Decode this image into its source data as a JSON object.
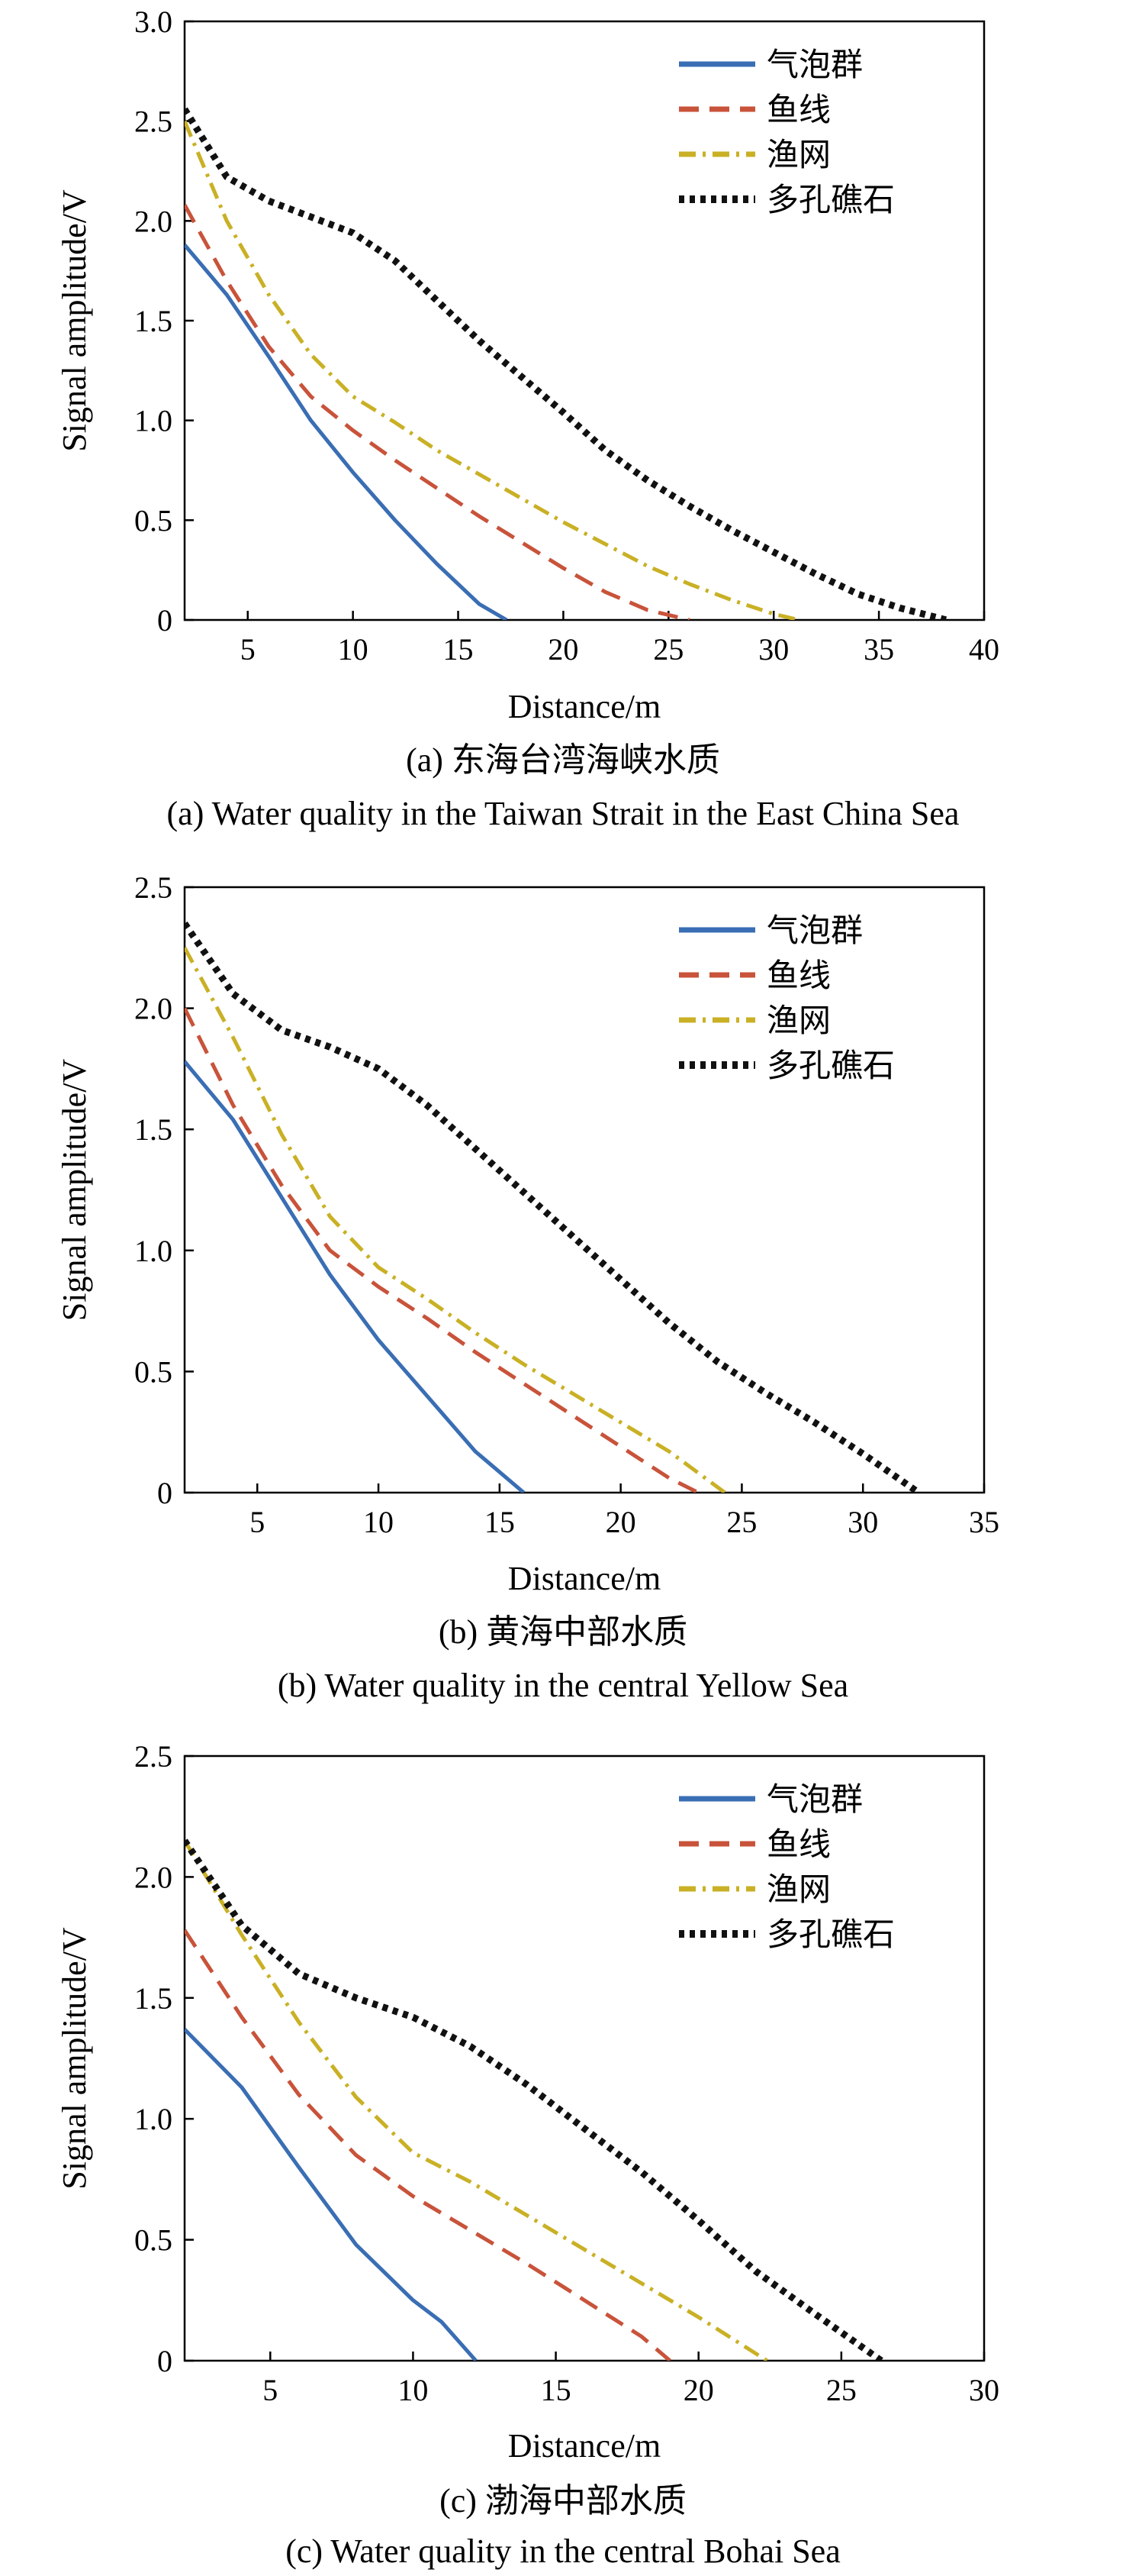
{
  "chart_data": [
    {
      "type": "line",
      "ylabel": "Signal amplitude/V",
      "xlabel": "Distance/m",
      "caption_zh": "(a) 东海台湾海峡水质",
      "caption_en": "(a) Water quality in the Taiwan Strait in the East China Sea",
      "xlim": [
        2,
        40
      ],
      "ylim": [
        0,
        3.0
      ],
      "xticks": [
        5,
        10,
        15,
        20,
        25,
        30,
        35,
        40
      ],
      "xtick_labels": [
        "5",
        "10",
        "15",
        "20",
        "25",
        "30",
        "35",
        "40"
      ],
      "yticks": [
        0,
        0.5,
        1.0,
        1.5,
        2.0,
        2.5,
        3.0
      ],
      "ytick_labels": [
        "0",
        "0.5",
        "1.0",
        "1.5",
        "2.0",
        "2.5",
        "3.0"
      ],
      "legend_position": "top-right",
      "series": [
        {
          "name": "气泡群",
          "x": [
            2,
            4,
            6,
            8,
            10,
            12,
            14,
            16,
            17.3
          ],
          "y": [
            1.88,
            1.63,
            1.32,
            1.0,
            0.74,
            0.5,
            0.28,
            0.08,
            0
          ]
        },
        {
          "name": "鱼线",
          "x": [
            2,
            4,
            6,
            8,
            10,
            12,
            14,
            16,
            18,
            20,
            22,
            24,
            26
          ],
          "y": [
            2.08,
            1.7,
            1.37,
            1.12,
            0.95,
            0.8,
            0.66,
            0.52,
            0.39,
            0.26,
            0.14,
            0.05,
            0
          ]
        },
        {
          "name": "渔网",
          "x": [
            2,
            4,
            6,
            8,
            10,
            12,
            14,
            16,
            18,
            20,
            22,
            24,
            26,
            28,
            30,
            31.2
          ],
          "y": [
            2.5,
            2.0,
            1.63,
            1.33,
            1.12,
            0.99,
            0.85,
            0.73,
            0.61,
            0.49,
            0.38,
            0.27,
            0.18,
            0.1,
            0.03,
            0
          ]
        },
        {
          "name": "多孔礁石",
          "x": [
            2,
            4,
            6,
            8,
            10,
            12,
            14,
            16,
            18,
            20,
            22,
            24,
            26,
            28,
            30,
            32,
            34,
            36,
            38.2
          ],
          "y": [
            2.56,
            2.22,
            2.1,
            2.02,
            1.94,
            1.8,
            1.6,
            1.4,
            1.22,
            1.04,
            0.85,
            0.7,
            0.57,
            0.45,
            0.34,
            0.23,
            0.13,
            0.06,
            0
          ]
        }
      ]
    },
    {
      "type": "line",
      "ylabel": "Signal amplitude/V",
      "xlabel": "Distance/m",
      "caption_zh": "(b) 黄海中部水质",
      "caption_en": "(b) Water quality in the central Yellow Sea",
      "xlim": [
        2,
        35
      ],
      "ylim": [
        0,
        2.5
      ],
      "xticks": [
        5,
        10,
        15,
        20,
        25,
        30,
        35
      ],
      "xtick_labels": [
        "5",
        "10",
        "15",
        "20",
        "25",
        "30",
        "35"
      ],
      "yticks": [
        0,
        0.5,
        1.0,
        1.5,
        2.0,
        2.5
      ],
      "ytick_labels": [
        "0",
        "0.5",
        "1.0",
        "1.5",
        "2.0",
        "2.5"
      ],
      "legend_position": "top-right",
      "series": [
        {
          "name": "气泡群",
          "x": [
            2,
            4,
            6,
            8,
            10,
            12,
            14,
            16
          ],
          "y": [
            1.78,
            1.54,
            1.22,
            0.9,
            0.63,
            0.4,
            0.17,
            0
          ]
        },
        {
          "name": "鱼线",
          "x": [
            2,
            4,
            6,
            8,
            10,
            12,
            14,
            16,
            18,
            20,
            22,
            23.2
          ],
          "y": [
            2.0,
            1.6,
            1.27,
            1.0,
            0.85,
            0.72,
            0.58,
            0.45,
            0.32,
            0.19,
            0.06,
            0
          ]
        },
        {
          "name": "渔网",
          "x": [
            2,
            4,
            6,
            8,
            10,
            12,
            14,
            16,
            18,
            20,
            22,
            24.3
          ],
          "y": [
            2.25,
            1.88,
            1.48,
            1.14,
            0.93,
            0.8,
            0.66,
            0.53,
            0.41,
            0.29,
            0.17,
            0
          ]
        },
        {
          "name": "多孔礁石",
          "x": [
            2,
            4,
            6,
            8,
            10,
            12,
            14,
            16,
            18,
            20,
            22,
            24,
            26,
            28,
            30,
            32.3
          ],
          "y": [
            2.35,
            2.06,
            1.91,
            1.84,
            1.75,
            1.6,
            1.42,
            1.24,
            1.06,
            0.88,
            0.7,
            0.54,
            0.41,
            0.29,
            0.16,
            0
          ]
        }
      ]
    },
    {
      "type": "line",
      "ylabel": "Signal amplitude/V",
      "xlabel": "Distance/m",
      "caption_zh": "(c) 渤海中部水质",
      "caption_en": "(c) Water quality in the central Bohai Sea",
      "xlim": [
        2,
        30
      ],
      "ylim": [
        0,
        2.5
      ],
      "xticks": [
        5,
        10,
        15,
        20,
        25,
        30
      ],
      "xtick_labels": [
        "5",
        "10",
        "15",
        "20",
        "25",
        "30"
      ],
      "yticks": [
        0,
        0.5,
        1.0,
        1.5,
        2.0,
        2.5
      ],
      "ytick_labels": [
        "0",
        "0.5",
        "1.0",
        "1.5",
        "2.0",
        "2.5"
      ],
      "legend_position": "top-right",
      "series": [
        {
          "name": "气泡群",
          "x": [
            2,
            4,
            6,
            8,
            10,
            11,
            12.2
          ],
          "y": [
            1.37,
            1.13,
            0.8,
            0.48,
            0.25,
            0.16,
            0
          ]
        },
        {
          "name": "鱼线",
          "x": [
            2,
            4,
            6,
            8,
            10,
            12,
            14,
            16,
            18,
            19
          ],
          "y": [
            1.78,
            1.42,
            1.1,
            0.85,
            0.68,
            0.54,
            0.4,
            0.25,
            0.1,
            0
          ]
        },
        {
          "name": "渔网",
          "x": [
            2,
            4,
            6,
            8,
            10,
            12,
            14,
            16,
            18,
            20,
            22.4
          ],
          "y": [
            2.15,
            1.76,
            1.4,
            1.09,
            0.86,
            0.74,
            0.6,
            0.46,
            0.32,
            0.18,
            0
          ]
        },
        {
          "name": "多孔礁石",
          "x": [
            2,
            4,
            6,
            8,
            10,
            12,
            14,
            16,
            18,
            20,
            22,
            24,
            26.4
          ],
          "y": [
            2.15,
            1.8,
            1.6,
            1.5,
            1.42,
            1.3,
            1.14,
            0.96,
            0.78,
            0.58,
            0.37,
            0.2,
            0
          ]
        }
      ]
    }
  ],
  "legend_styles": [
    {
      "name": "气泡群",
      "color": "#3a6eb4",
      "dash": "solid"
    },
    {
      "name": "鱼线",
      "color": "#c8533a",
      "dash": "dashed"
    },
    {
      "name": "渔网",
      "color": "#c9b025",
      "dash": "dashdot"
    },
    {
      "name": "多孔礁石",
      "color": "#111111",
      "dash": "dotted"
    }
  ]
}
